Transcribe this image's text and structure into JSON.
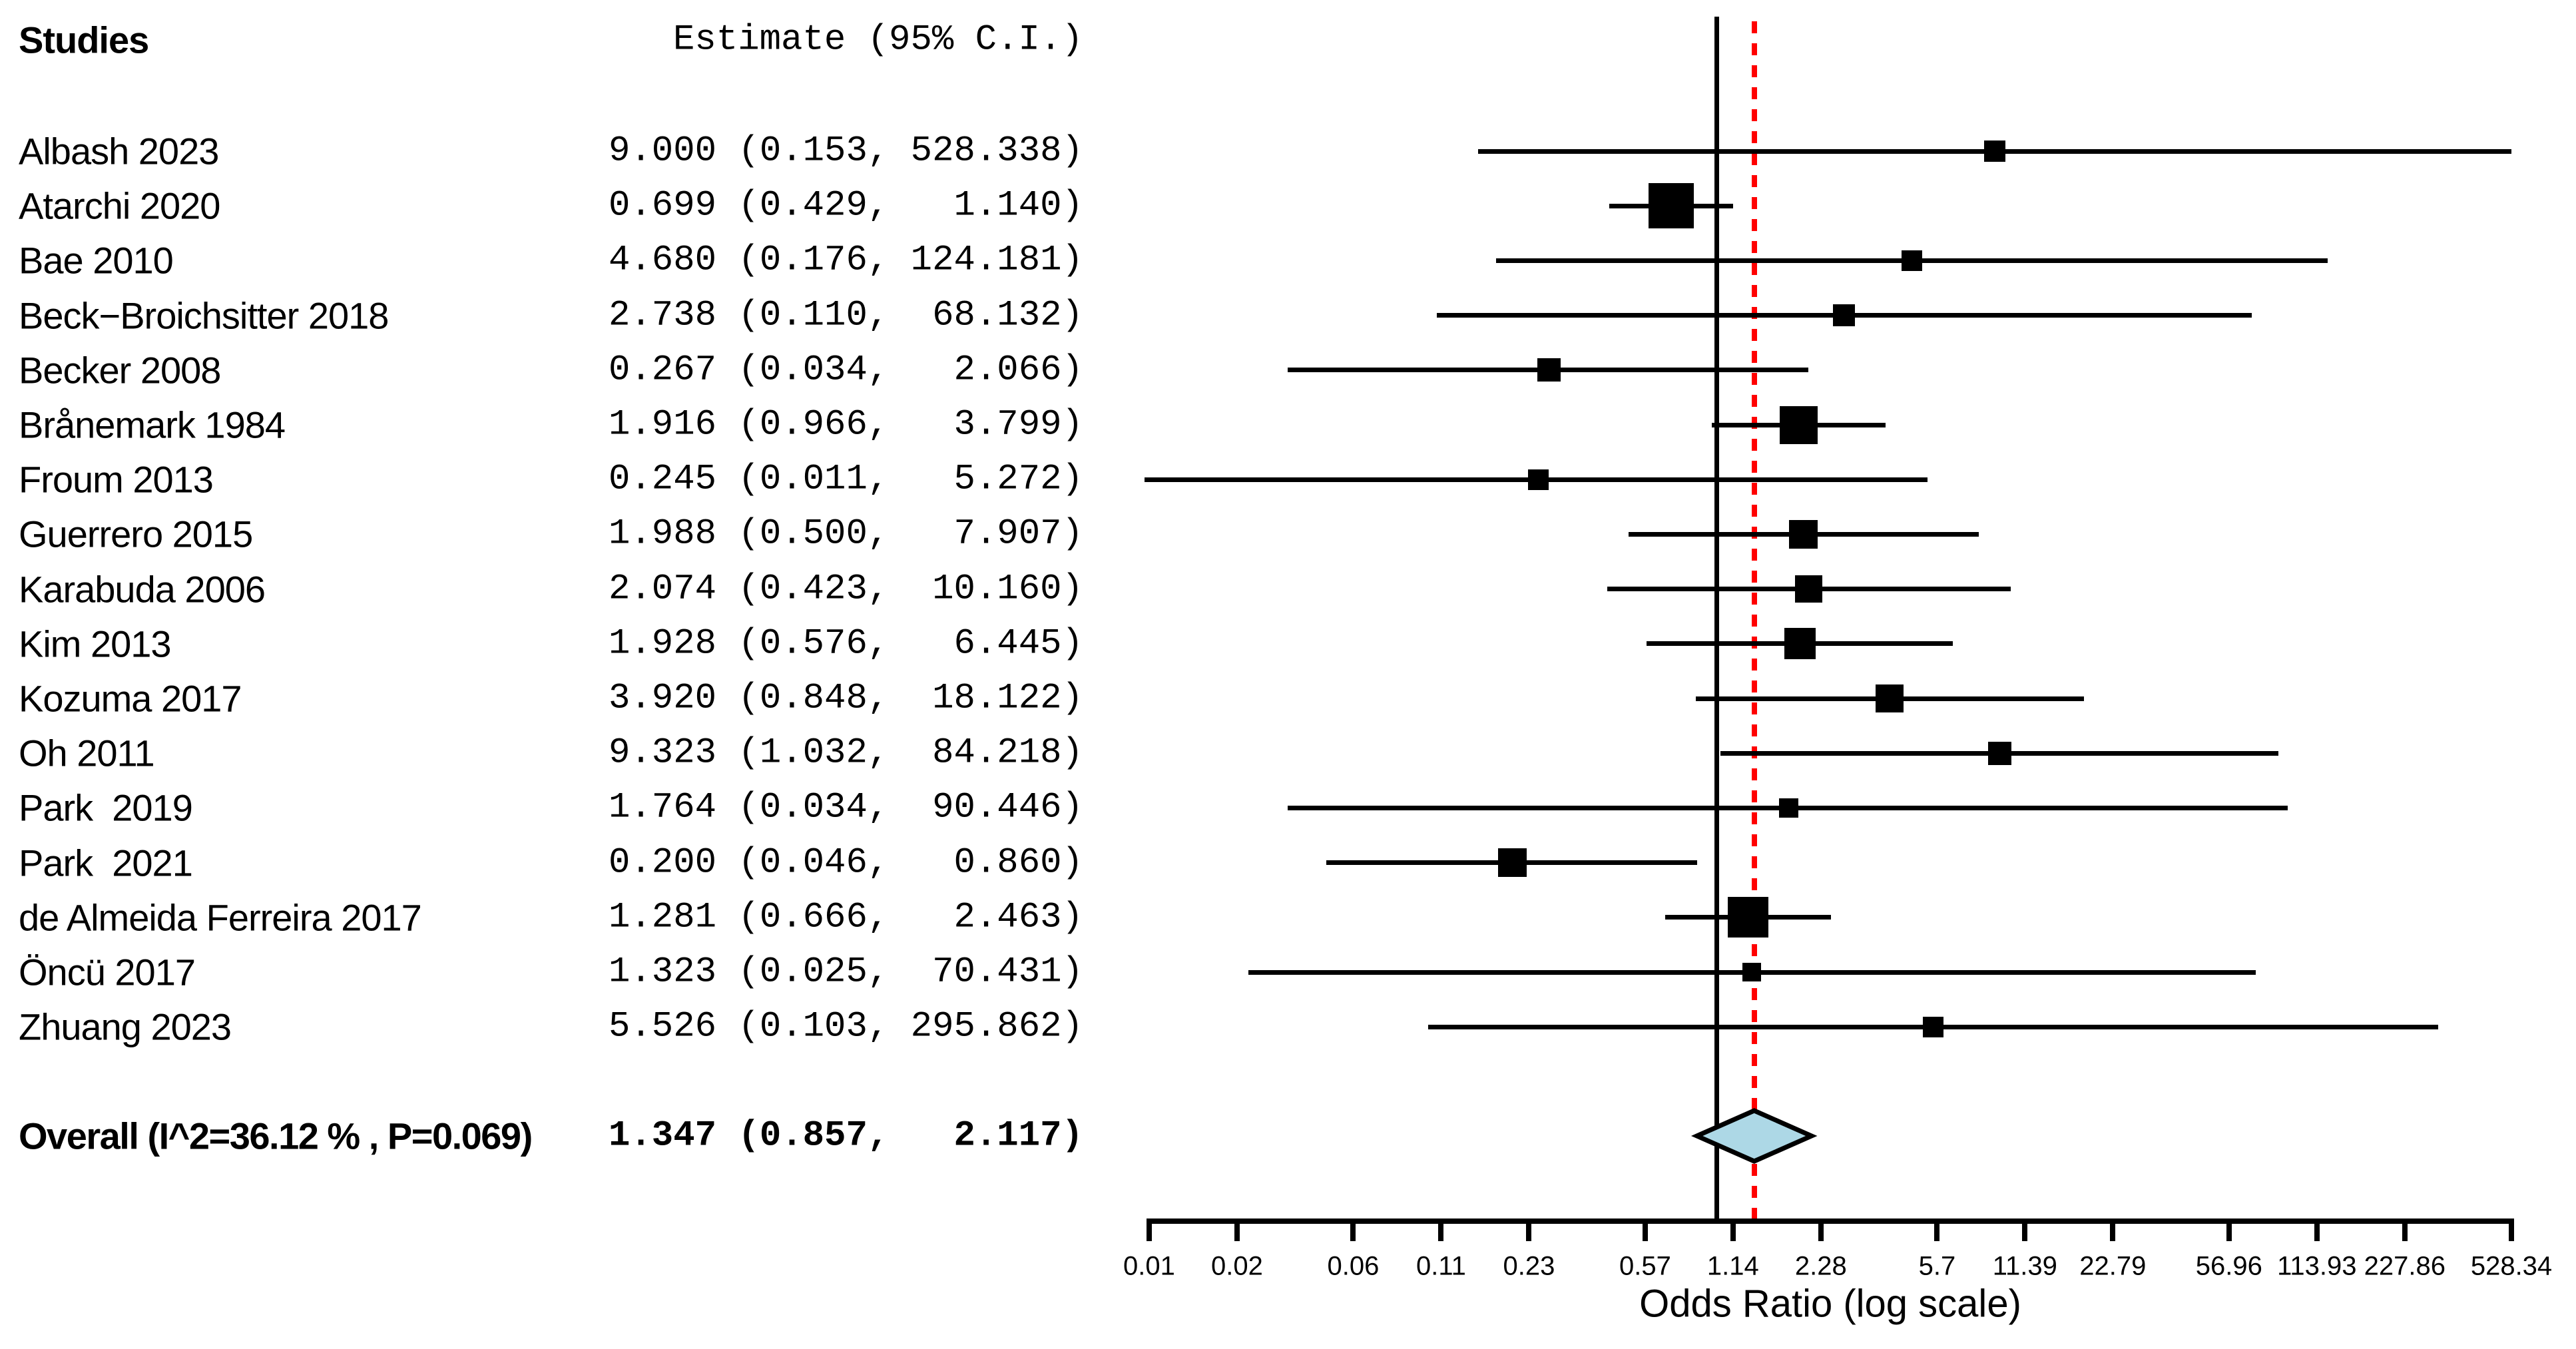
{
  "columns": {
    "studies_header": "Studies",
    "estimate_header": "Estimate (95% C.I.)"
  },
  "chart_data": {
    "type": "forest",
    "title": "",
    "xlabel": "Odds Ratio (log scale)",
    "scale": "log",
    "axis_range": [
      0.0114,
      528.338
    ],
    "reference_value": 1,
    "studies": [
      {
        "name": "Albash 2023",
        "estimate": 9.0,
        "ci_lower": 0.153,
        "ci_upper": 528.338,
        "label": "9.000 (0.153, 528.338)",
        "marker_size": 32
      },
      {
        "name": "Atarchi 2020",
        "estimate": 0.699,
        "ci_lower": 0.429,
        "ci_upper": 1.14,
        "label": "0.699 (0.429,   1.140)",
        "marker_size": 68
      },
      {
        "name": "Bae 2010",
        "estimate": 4.68,
        "ci_lower": 0.176,
        "ci_upper": 124.181,
        "label": "4.680 (0.176, 124.181)",
        "marker_size": 31
      },
      {
        "name": "Beck−Broichsitter 2018",
        "estimate": 2.738,
        "ci_lower": 0.11,
        "ci_upper": 68.132,
        "label": "2.738 (0.110,  68.132)",
        "marker_size": 33
      },
      {
        "name": "Becker 2008",
        "estimate": 0.267,
        "ci_lower": 0.034,
        "ci_upper": 2.066,
        "label": "0.267 (0.034,   2.066)",
        "marker_size": 35
      },
      {
        "name": "Brånemark 1984",
        "estimate": 1.916,
        "ci_lower": 0.966,
        "ci_upper": 3.799,
        "label": "1.916 (0.966,   3.799)",
        "marker_size": 57
      },
      {
        "name": "Froum 2013",
        "estimate": 0.245,
        "ci_lower": 0.011,
        "ci_upper": 5.272,
        "label": "0.245 (0.011,   5.272)",
        "marker_size": 31
      },
      {
        "name": "Guerrero 2015",
        "estimate": 1.988,
        "ci_lower": 0.5,
        "ci_upper": 7.907,
        "label": "1.988 (0.500,   7.907)",
        "marker_size": 43
      },
      {
        "name": "Karabuda 2006",
        "estimate": 2.074,
        "ci_lower": 0.423,
        "ci_upper": 10.16,
        "label": "2.074 (0.423,  10.160)",
        "marker_size": 41
      },
      {
        "name": "Kim 2013",
        "estimate": 1.928,
        "ci_lower": 0.576,
        "ci_upper": 6.445,
        "label": "1.928 (0.576,   6.445)",
        "marker_size": 47
      },
      {
        "name": "Kozuma 2017",
        "estimate": 3.92,
        "ci_lower": 0.848,
        "ci_upper": 18.122,
        "label": "3.920 (0.848,  18.122)",
        "marker_size": 42
      },
      {
        "name": "Oh 2011",
        "estimate": 9.323,
        "ci_lower": 1.032,
        "ci_upper": 84.218,
        "label": "9.323 (1.032,  84.218)",
        "marker_size": 35
      },
      {
        "name": "Park  2019",
        "estimate": 1.764,
        "ci_lower": 0.034,
        "ci_upper": 90.446,
        "label": "1.764 (0.034,  90.446)",
        "marker_size": 29
      },
      {
        "name": "Park  2021",
        "estimate": 0.2,
        "ci_lower": 0.046,
        "ci_upper": 0.86,
        "label": "0.200 (0.046,   0.860)",
        "marker_size": 43
      },
      {
        "name": "de Almeida Ferreira 2017",
        "estimate": 1.281,
        "ci_lower": 0.666,
        "ci_upper": 2.463,
        "label": "1.281 (0.666,   2.463)",
        "marker_size": 61
      },
      {
        "name": "Öncü 2017",
        "estimate": 1.323,
        "ci_lower": 0.025,
        "ci_upper": 70.431,
        "label": "1.323 (0.025,  70.431)",
        "marker_size": 28
      },
      {
        "name": "Zhuang 2023",
        "estimate": 5.526,
        "ci_lower": 0.103,
        "ci_upper": 295.862,
        "label": "5.526 (0.103, 295.862)",
        "marker_size": 31
      }
    ],
    "overall": {
      "name": "Overall (I^2=36.12 % , P=0.069)",
      "estimate": 1.347,
      "ci_lower": 0.857,
      "ci_upper": 2.117,
      "label": "1.347 (0.857,   2.117)"
    },
    "ticks": [
      {
        "value": 0.0114,
        "label": "0.01"
      },
      {
        "value": 0.0228,
        "label": "0.02"
      },
      {
        "value": 0.057,
        "label": "0.06"
      },
      {
        "value": 0.114,
        "label": "0.11"
      },
      {
        "value": 0.228,
        "label": "0.23"
      },
      {
        "value": 0.57,
        "label": "0.57"
      },
      {
        "value": 1.139,
        "label": "1.14"
      },
      {
        "value": 2.279,
        "label": "2.28"
      },
      {
        "value": 5.7,
        "label": "5.7"
      },
      {
        "value": 11.393,
        "label": "11.39"
      },
      {
        "value": 22.786,
        "label": "22.79"
      },
      {
        "value": 56.965,
        "label": "56.96"
      },
      {
        "value": 113.93,
        "label": "113.93"
      },
      {
        "value": 227.86,
        "label": "227.86"
      },
      {
        "value": 528.338,
        "label": "528.34"
      }
    ],
    "colors": {
      "marker": "#000000",
      "ci_line": "#000000",
      "reference_line": "#000000",
      "overall_estimate_line": "#FF0000",
      "diamond_fill": "#ADD8E6",
      "diamond_border": "#000000",
      "text": "#000000",
      "background": "#FFFFFF"
    }
  }
}
